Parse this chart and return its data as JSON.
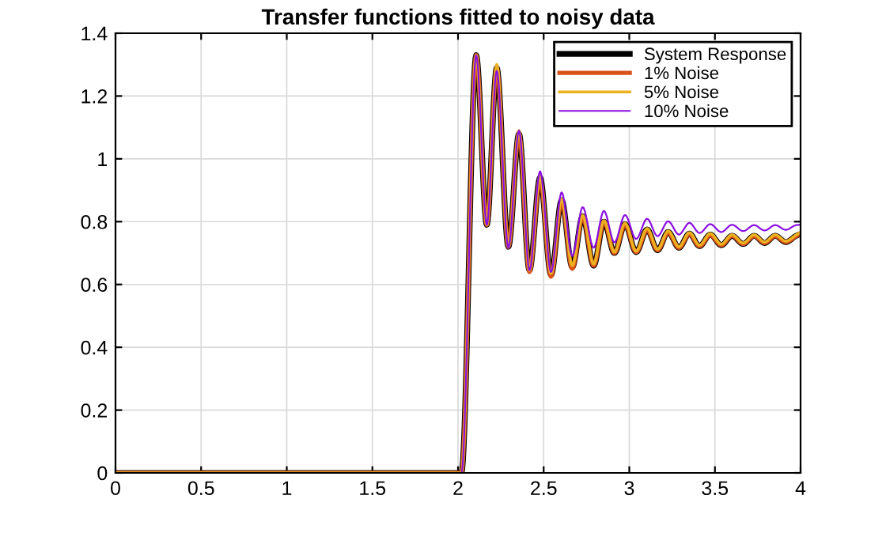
{
  "chart_data": {
    "type": "line",
    "title": "Transfer functions fitted to noisy data",
    "x": [
      0,
      2.0,
      2.02,
      2.106,
      2.168,
      2.226,
      2.294,
      2.356,
      2.417,
      2.479,
      2.543,
      2.605,
      2.667,
      2.728,
      2.792,
      2.852,
      2.913,
      2.975,
      3.04,
      3.104,
      3.165,
      3.227,
      3.29,
      3.351,
      3.41,
      3.473,
      3.537,
      3.6,
      3.665,
      3.729,
      3.79,
      3.852,
      3.914,
      3.975,
      4.0
    ],
    "series": [
      {
        "name": "System Response",
        "color": "#000000",
        "values": [
          0,
          0,
          0,
          1.33,
          0.79,
          1.29,
          0.72,
          1.08,
          0.645,
          0.94,
          0.63,
          0.868,
          0.655,
          0.817,
          0.66,
          0.8,
          0.7,
          0.792,
          0.703,
          0.775,
          0.709,
          0.767,
          0.717,
          0.762,
          0.722,
          0.759,
          0.725,
          0.755,
          0.729,
          0.755,
          0.732,
          0.755,
          0.735,
          0.755,
          0.76
        ]
      },
      {
        "name": "1% Noise",
        "color": "#d95319",
        "values": [
          0,
          0,
          0,
          1.33,
          0.79,
          1.29,
          0.72,
          1.08,
          0.64,
          0.935,
          0.625,
          0.865,
          0.65,
          0.815,
          0.66,
          0.8,
          0.7,
          0.79,
          0.703,
          0.773,
          0.709,
          0.765,
          0.717,
          0.76,
          0.722,
          0.757,
          0.725,
          0.755,
          0.729,
          0.754,
          0.732,
          0.754,
          0.735,
          0.754,
          0.76
        ]
      },
      {
        "name": "5% Noise",
        "color": "#edb120",
        "values": [
          0,
          0,
          0,
          1.33,
          0.79,
          1.3,
          0.72,
          1.09,
          0.645,
          0.945,
          0.635,
          0.872,
          0.66,
          0.82,
          0.665,
          0.803,
          0.703,
          0.795,
          0.706,
          0.778,
          0.712,
          0.77,
          0.72,
          0.765,
          0.725,
          0.762,
          0.728,
          0.758,
          0.732,
          0.758,
          0.735,
          0.758,
          0.738,
          0.758,
          0.765
        ]
      },
      {
        "name": "10% Noise",
        "color": "#8b0fe0",
        "values": [
          0,
          0,
          0,
          1.33,
          0.79,
          1.28,
          0.717,
          1.09,
          0.645,
          0.96,
          0.64,
          0.893,
          0.691,
          0.846,
          0.717,
          0.834,
          0.734,
          0.821,
          0.745,
          0.809,
          0.754,
          0.801,
          0.759,
          0.796,
          0.764,
          0.792,
          0.767,
          0.79,
          0.77,
          0.789,
          0.772,
          0.789,
          0.774,
          0.789,
          0.79
        ]
      }
    ],
    "xlim": [
      0,
      4
    ],
    "xticks": [
      0,
      0.5,
      1,
      1.5,
      2,
      2.5,
      3,
      3.5,
      4
    ],
    "ylim": [
      0,
      1.4
    ],
    "yticks": [
      0,
      0.2,
      0.4,
      0.6,
      0.8,
      1,
      1.2,
      1.4
    ],
    "grid": true,
    "legend": "top right"
  }
}
